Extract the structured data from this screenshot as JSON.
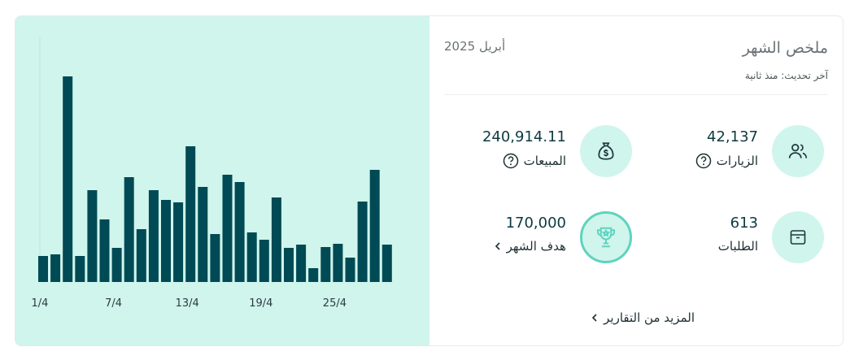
{
  "header": {
    "title": "ملخص الشهر",
    "month": "أبريل 2025",
    "updated": "آخر تحديث: منذ ثانية"
  },
  "stats": [
    {
      "value": "42,137",
      "label": "الزيارات"
    },
    {
      "value": "240,914.11",
      "label": "المبيعات"
    },
    {
      "value": "613",
      "label": "الطلبات"
    },
    {
      "value": "170,000",
      "label": "هدف الشهر"
    }
  ],
  "more_link": "المزيد من التقارير",
  "chart_data": {
    "type": "bar",
    "color": "#004a55",
    "categories": [
      "1/4",
      null,
      null,
      null,
      null,
      null,
      "7/4",
      null,
      null,
      null,
      null,
      null,
      "13/4",
      null,
      null,
      null,
      null,
      null,
      "19/4",
      null,
      null,
      null,
      null,
      null,
      "25/4",
      null,
      null,
      null,
      null
    ],
    "values": [
      32,
      34,
      253,
      32,
      113,
      77,
      42,
      129,
      65,
      113,
      101,
      98,
      167,
      117,
      59,
      132,
      123,
      61,
      52,
      104,
      42,
      46,
      17,
      43,
      47,
      30,
      99,
      138,
      46
    ],
    "ylim": [
      0,
      300
    ]
  }
}
